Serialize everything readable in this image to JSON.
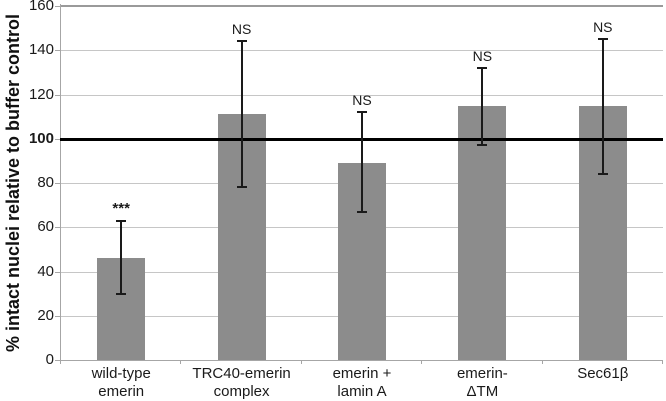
{
  "chart_data": {
    "type": "bar",
    "title": "",
    "ylabel": "% intact nuclei relative to buffer control",
    "xlabel": "",
    "ylim": [
      0,
      160
    ],
    "yticks": [
      0,
      20,
      40,
      60,
      80,
      100,
      120,
      140,
      160
    ],
    "grid": "horizontal gridlines on",
    "legend": "none",
    "reference_line": {
      "y": 100,
      "color": "#000000",
      "tick_label_bold": true
    },
    "categories": [
      "wild-type\nemerin",
      "TRC40-emerin\ncomplex",
      "emerin +\nlamin A",
      "emerin-\nΔTM",
      "Sec61β"
    ],
    "values": [
      46,
      111,
      89,
      115,
      115
    ],
    "error_bar_top": [
      63,
      144,
      112,
      132,
      145
    ],
    "error_bar_bottom": [
      30,
      78,
      67,
      97,
      84
    ],
    "significance_labels": [
      "***",
      "NS",
      "NS",
      "NS",
      "NS"
    ],
    "colors": {
      "bar_fill": "#8c8c8c",
      "error_bar": "#1a1a1a",
      "gridline": "#c6c6c6",
      "top_gridline": "#9a9a9a",
      "axis_line": "#a6a6a6",
      "text": "#1a1a1a",
      "background": "#ffffff"
    }
  }
}
